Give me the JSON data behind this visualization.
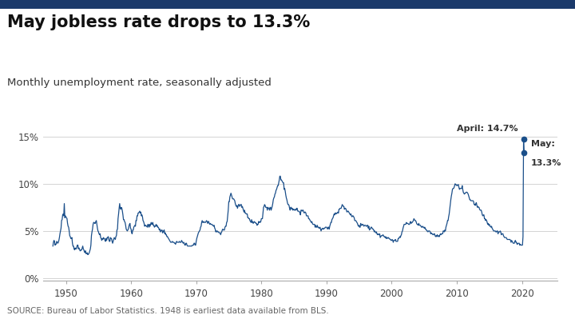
{
  "title": "May jobless rate drops to 13.3%",
  "subtitle": "Monthly unemployment rate, seasonally adjusted",
  "source": "SOURCE: Bureau of Labor Statistics. 1948 is earliest data available from BLS.",
  "line_color": "#1b4f8a",
  "bg_color": "#ffffff",
  "annotation_april": "April: 14.7%",
  "annotation_may_line1": "May:",
  "annotation_may_line2": "13.3%",
  "april_value": 14.7,
  "may_value": 13.3,
  "ylim": [
    -0.3,
    16.8
  ],
  "yticks": [
    0,
    5,
    10,
    15
  ],
  "ytick_labels": [
    "0%",
    "5%",
    "10%",
    "15%"
  ],
  "xticks": [
    1950,
    1960,
    1970,
    1980,
    1990,
    2000,
    2010,
    2020
  ],
  "title_color": "#111111",
  "subtitle_color": "#333333",
  "source_color": "#666666",
  "top_bar_color": "#1b3a6b",
  "top_bar_height": 0.028
}
